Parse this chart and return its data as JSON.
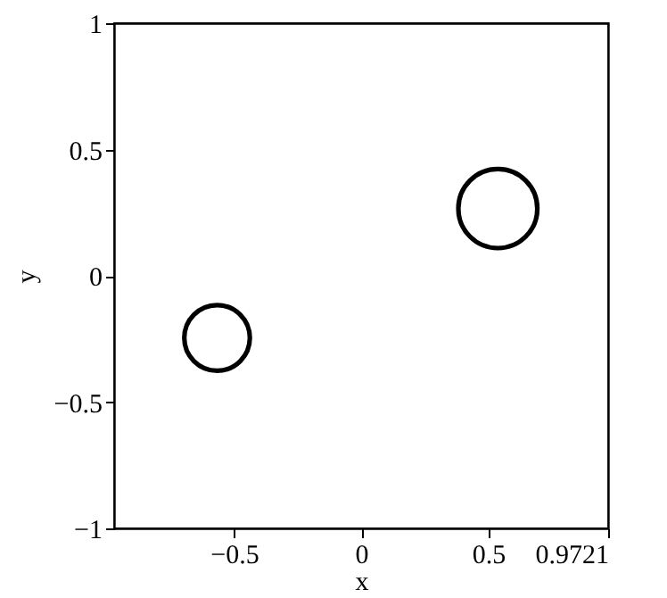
{
  "chart_data": {
    "type": "bubble",
    "xlabel": "x",
    "ylabel": "y",
    "x": [
      -0.567,
      0.538
    ],
    "series": [
      {
        "color": "#000000",
        "values": [
          -0.246,
          0.266
        ],
        "sizes": [
          0.69,
          1
        ]
      }
    ],
    "xlim": [
      -0.9721,
      0.9721
    ],
    "xticks": [
      -0.5,
      0,
      0.5,
      0.9721
    ],
    "ylim": [
      -1,
      1
    ],
    "yticks": [
      -1,
      -0.5,
      0,
      0.5,
      1
    ],
    "grid": false
  }
}
